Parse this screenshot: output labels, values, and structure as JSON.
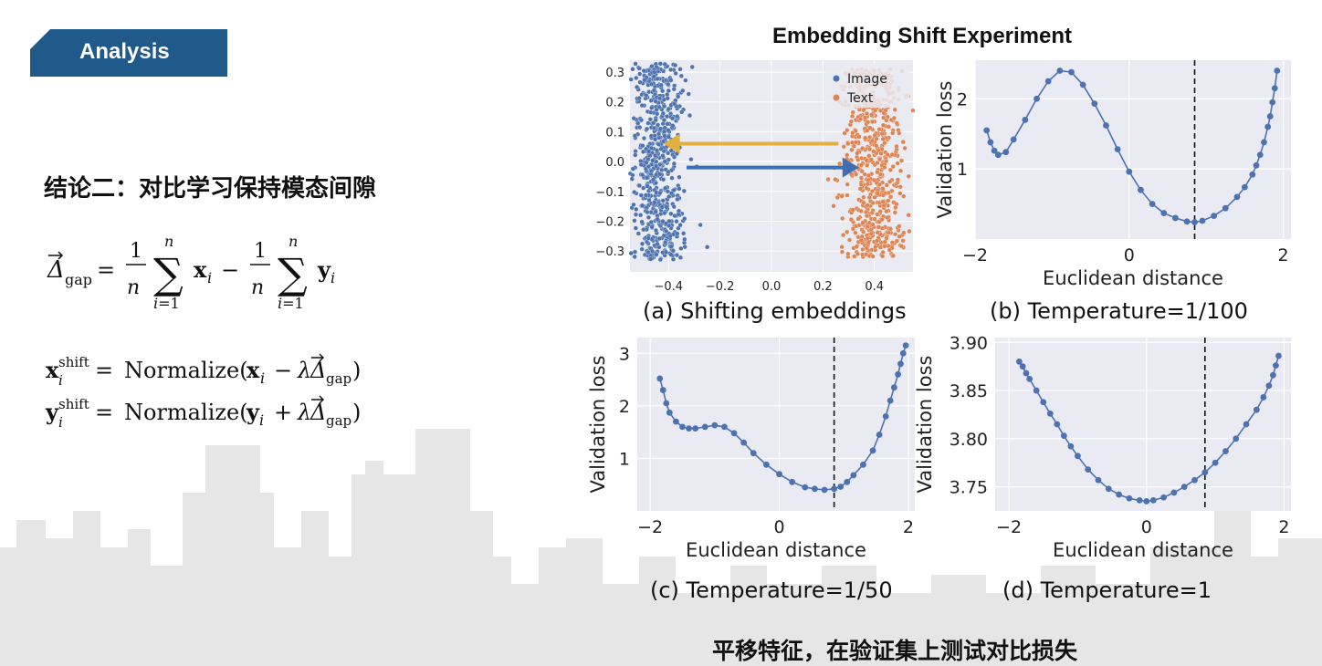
{
  "header": {
    "tag_label": "Analysis"
  },
  "left": {
    "conclusion": "结论二：对比学习保持模态间隙",
    "formula": {
      "gap_line": "Δgap = (1/n) Σ xi − (1/n) Σ yi",
      "x_shift_line": "xi shift = Normalize(xi − λ Δgap)",
      "y_shift_line": "yi shift = Normalize(yi + λ Δgap)"
    }
  },
  "figure_title": "Embedding Shift Experiment",
  "bottom_note": "平移特征，在验证集上测试对比损失",
  "colors": {
    "image": "#4c72b0",
    "text": "#dd8452",
    "left_arrow": "#e0b040",
    "right_arrow": "#3f6fb0",
    "tag": "#1f5a8a"
  },
  "chart_data": [
    {
      "type": "scatter",
      "caption": "(a) Shifting embeddings",
      "xlim": [
        -0.55,
        0.55
      ],
      "ylim": [
        -0.37,
        0.34
      ],
      "xticks": [
        -0.4,
        -0.2,
        0.0,
        0.2,
        0.4
      ],
      "xtick_labels": [
        "−0.4",
        "−0.2",
        "0.0",
        "0.2",
        "0.4"
      ],
      "yticks": [
        0.3,
        0.2,
        0.1,
        0.0,
        -0.1,
        -0.2,
        -0.3
      ],
      "ytick_labels": [
        "0.3",
        "0.2",
        "0.1",
        "0.0",
        "−0.1",
        "−0.2",
        "−0.3"
      ],
      "legend": [
        "Image",
        "Text"
      ],
      "legend_position": "upper right",
      "series": [
        {
          "name": "Image",
          "x_center": -0.44,
          "x_spread": 0.05,
          "y_range": [
            -0.33,
            0.33
          ]
        },
        {
          "name": "Text",
          "x_center": 0.39,
          "x_spread": 0.06,
          "y_range": [
            -0.32,
            0.31
          ]
        }
      ],
      "arrows": [
        {
          "from": [
            0.26,
            0.06
          ],
          "to": [
            -0.42,
            0.06
          ]
        },
        {
          "from": [
            -0.33,
            -0.02
          ],
          "to": [
            0.34,
            -0.02
          ]
        }
      ]
    },
    {
      "type": "line",
      "caption": "(b) Temperature=1/100",
      "xlabel": "Euclidean distance",
      "ylabel": "Validation loss",
      "xlim": [
        -2.0,
        2.1
      ],
      "ylim": [
        0.0,
        2.55
      ],
      "xticks": [
        -2,
        0,
        2
      ],
      "xtick_labels": [
        "−2",
        "0",
        "2"
      ],
      "yticks": [
        1,
        2
      ],
      "ytick_labels": [
        "1",
        "2"
      ],
      "vline": 0.85,
      "x": [
        -1.85,
        -1.8,
        -1.75,
        -1.7,
        -1.6,
        -1.5,
        -1.35,
        -1.2,
        -1.05,
        -0.9,
        -0.75,
        -0.6,
        -0.45,
        -0.3,
        -0.15,
        0.0,
        0.15,
        0.3,
        0.45,
        0.6,
        0.75,
        0.85,
        0.95,
        1.1,
        1.25,
        1.4,
        1.5,
        1.6,
        1.65,
        1.7,
        1.75,
        1.8,
        1.83,
        1.86,
        1.89,
        1.92
      ],
      "y": [
        1.55,
        1.38,
        1.26,
        1.2,
        1.24,
        1.42,
        1.7,
        2.0,
        2.25,
        2.4,
        2.38,
        2.2,
        1.93,
        1.62,
        1.28,
        0.96,
        0.7,
        0.5,
        0.37,
        0.3,
        0.25,
        0.24,
        0.26,
        0.33,
        0.44,
        0.6,
        0.74,
        0.92,
        1.05,
        1.2,
        1.38,
        1.6,
        1.75,
        1.95,
        2.15,
        2.4
      ]
    },
    {
      "type": "line",
      "caption": "(c) Temperature=1/50",
      "xlabel": "Euclidean distance",
      "ylabel": "Validation loss",
      "xlim": [
        -2.2,
        2.1
      ],
      "ylim": [
        0.0,
        3.3
      ],
      "xticks": [
        -2,
        0,
        2
      ],
      "xtick_labels": [
        "−2",
        "0",
        "2"
      ],
      "yticks": [
        1,
        2,
        3
      ],
      "ytick_labels": [
        "1",
        "2",
        "3"
      ],
      "vline": 0.85,
      "x": [
        -1.85,
        -1.8,
        -1.75,
        -1.7,
        -1.6,
        -1.5,
        -1.4,
        -1.3,
        -1.15,
        -1.0,
        -0.85,
        -0.7,
        -0.55,
        -0.4,
        -0.2,
        0.0,
        0.2,
        0.4,
        0.55,
        0.7,
        0.85,
        0.95,
        1.05,
        1.15,
        1.3,
        1.45,
        1.55,
        1.65,
        1.72,
        1.78,
        1.84,
        1.88,
        1.92,
        1.96
      ],
      "y": [
        2.52,
        2.3,
        2.05,
        1.87,
        1.7,
        1.6,
        1.57,
        1.57,
        1.6,
        1.63,
        1.6,
        1.48,
        1.3,
        1.1,
        0.88,
        0.7,
        0.55,
        0.45,
        0.42,
        0.4,
        0.42,
        0.46,
        0.55,
        0.68,
        0.88,
        1.15,
        1.45,
        1.8,
        2.1,
        2.35,
        2.6,
        2.8,
        3.0,
        3.15
      ]
    },
    {
      "type": "line",
      "caption": "(d) Temperature=1",
      "xlabel": "Euclidean distance",
      "ylabel": "Validation loss",
      "xlim": [
        -2.2,
        2.1
      ],
      "ylim": [
        3.725,
        3.905
      ],
      "xticks": [
        -2,
        0,
        2
      ],
      "xtick_labels": [
        "−2",
        "0",
        "2"
      ],
      "yticks": [
        3.75,
        3.8,
        3.85,
        3.9
      ],
      "ytick_labels": [
        "3.75",
        "3.80",
        "3.85",
        "3.90"
      ],
      "vline": 0.85,
      "x": [
        -1.85,
        -1.8,
        -1.75,
        -1.7,
        -1.6,
        -1.5,
        -1.4,
        -1.3,
        -1.2,
        -1.1,
        -1.0,
        -0.85,
        -0.7,
        -0.55,
        -0.4,
        -0.25,
        -0.1,
        0.0,
        0.1,
        0.25,
        0.4,
        0.55,
        0.7,
        0.85,
        1.0,
        1.15,
        1.3,
        1.45,
        1.6,
        1.7,
        1.78,
        1.84,
        1.88,
        1.92
      ],
      "y": [
        3.88,
        3.875,
        3.868,
        3.862,
        3.85,
        3.838,
        3.826,
        3.815,
        3.803,
        3.792,
        3.782,
        3.768,
        3.757,
        3.748,
        3.742,
        3.738,
        3.736,
        3.735,
        3.736,
        3.739,
        3.744,
        3.75,
        3.757,
        3.765,
        3.775,
        3.787,
        3.8,
        3.815,
        3.83,
        3.843,
        3.855,
        3.866,
        3.876,
        3.886
      ]
    }
  ]
}
